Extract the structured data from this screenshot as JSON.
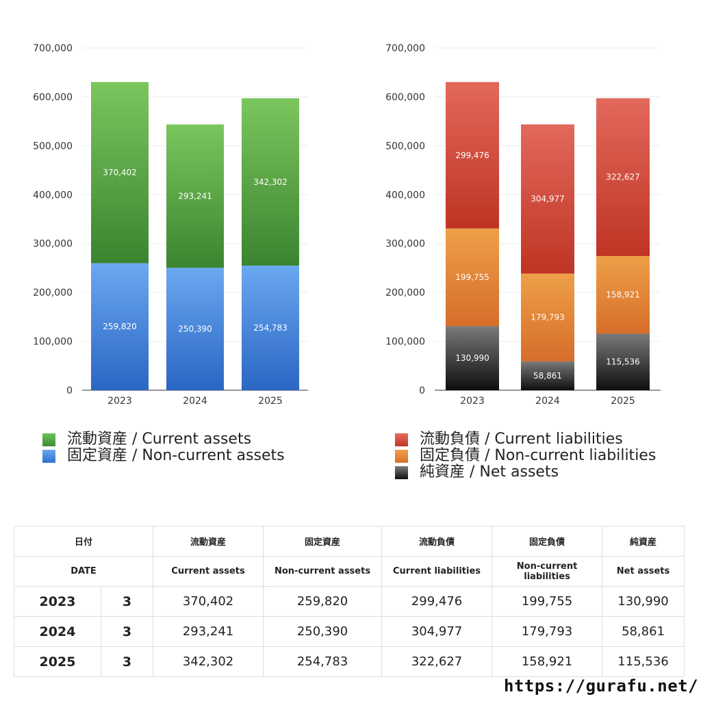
{
  "chart_data": [
    {
      "type": "bar",
      "stacked": true,
      "categories": [
        "2023",
        "2024",
        "2025"
      ],
      "ylim": [
        0,
        700000
      ],
      "yticks": [
        "0",
        "100,000",
        "200,000",
        "300,000",
        "400,000",
        "500,000",
        "600,000",
        "700,000"
      ],
      "grid": true,
      "series": [
        {
          "name": "固定資産 / Non-current assets",
          "values": [
            259820,
            250390,
            254783
          ],
          "labels": [
            "259,820",
            "250,390",
            "254,783"
          ],
          "color": "#4a8fe0"
        },
        {
          "name": "流動資産 / Current assets",
          "values": [
            370402,
            293241,
            342302
          ],
          "labels": [
            "370,402",
            "293,241",
            "342,302"
          ],
          "color": "#4ea03e"
        }
      ]
    },
    {
      "type": "bar",
      "stacked": true,
      "categories": [
        "2023",
        "2024",
        "2025"
      ],
      "ylim": [
        0,
        700000
      ],
      "yticks": [
        "0",
        "100,000",
        "200,000",
        "300,000",
        "400,000",
        "500,000",
        "600,000",
        "700,000"
      ],
      "grid": true,
      "series": [
        {
          "name": "純資産 / Net assets",
          "values": [
            130990,
            58861,
            115536
          ],
          "labels": [
            "130,990",
            "58,861",
            "115,536"
          ],
          "color": "#333333"
        },
        {
          "name": "固定負債 / Non-current liabilities",
          "values": [
            199755,
            179793,
            158921
          ],
          "labels": [
            "199,755",
            "179,793",
            "158,921"
          ],
          "color": "#e0822f"
        },
        {
          "name": "流動負債 / Current liabilities",
          "values": [
            299476,
            304977,
            322627
          ],
          "labels": [
            "299,476",
            "304,977",
            "322,627"
          ],
          "color": "#d4473a"
        }
      ]
    }
  ],
  "legend_left": [
    {
      "label": "流動資産 / Current assets",
      "color": "#4ea03e"
    },
    {
      "label": "固定資産 / Non-current assets",
      "color": "#4a8fe0"
    }
  ],
  "legend_right": [
    {
      "label": "流動負債 / Current liabilities",
      "color": "#d4473a"
    },
    {
      "label": "固定負債 / Non-current liabilities",
      "color": "#e0822f"
    },
    {
      "label": "純資産 / Net assets",
      "color": "#333333"
    }
  ],
  "table": {
    "header_jp": [
      "日付",
      "流動資産",
      "固定資産",
      "流動負債",
      "固定負債",
      "純資産"
    ],
    "header_en": [
      "DATE",
      "Current assets",
      "Non-current assets",
      "Current liabilities",
      "Non-current liabilities",
      "Net assets"
    ],
    "rows": [
      {
        "year": "2023",
        "month": "3",
        "values": [
          "370,402",
          "259,820",
          "299,476",
          "199,755",
          "130,990"
        ]
      },
      {
        "year": "2024",
        "month": "3",
        "values": [
          "293,241",
          "250,390",
          "304,977",
          "179,793",
          "58,861"
        ]
      },
      {
        "year": "2025",
        "month": "3",
        "values": [
          "342,302",
          "254,783",
          "322,627",
          "158,921",
          "115,536"
        ]
      }
    ]
  },
  "source": "https://gurafu.net/"
}
